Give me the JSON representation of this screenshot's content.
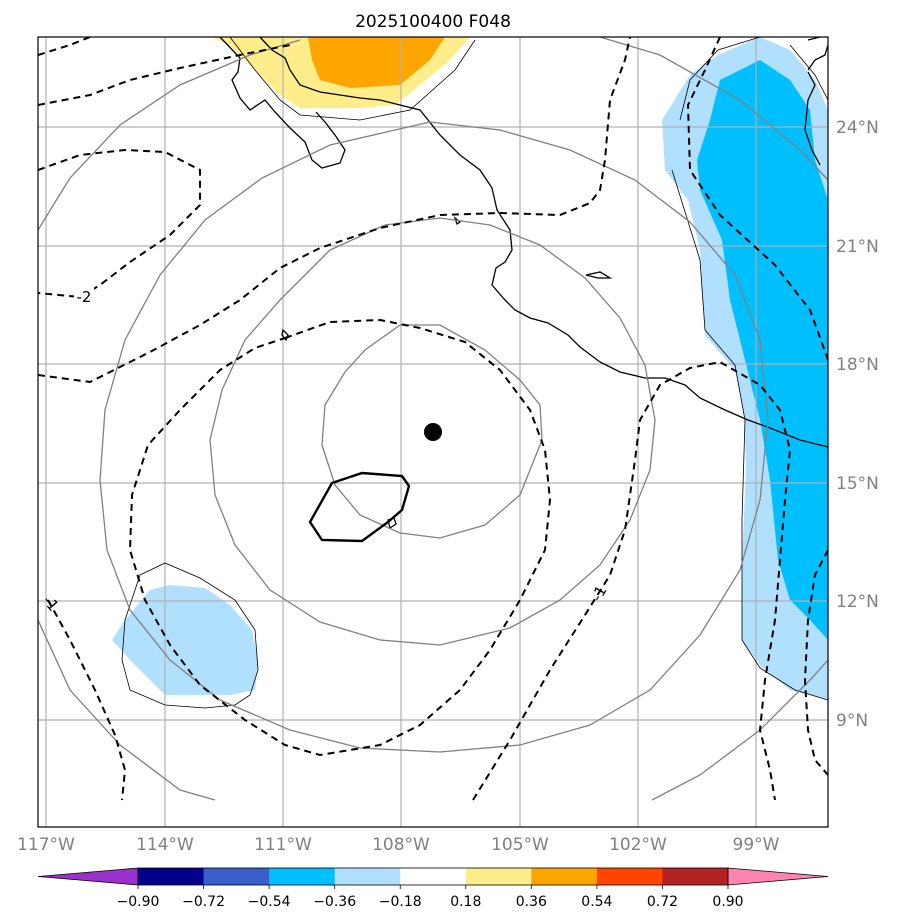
{
  "title": "2025100400 F048",
  "lon_ticks": [
    "117°W",
    "114°W",
    "111°W",
    "108°W",
    "105°W",
    "102°W",
    "99°W"
  ],
  "lat_ticks": [
    "24°N",
    "21°N",
    "18°N",
    "15°N",
    "12°N",
    "9°N"
  ],
  "colorbar": {
    "ticks": [
      "−0.90",
      "−0.72",
      "−0.54",
      "−0.36",
      "−0.18",
      "0.18",
      "0.36",
      "0.54",
      "0.72",
      "0.90"
    ],
    "colors": [
      "#9932cc",
      "#00008b",
      "#3a5fcd",
      "#00bfff",
      "#b0e0fe",
      "#ffffff",
      "#ffec8b",
      "#ffa500",
      "#ff4500",
      "#b22222",
      "#ff83b0"
    ]
  },
  "contour_labels": {
    "neg2": "-2",
    "neg1_left": "-1",
    "neg1_right": "-1"
  },
  "colors": {
    "grid": "#b0b0b0",
    "coast": "#000000",
    "range_rings": "#808080",
    "light_blue": "#b0e0fe",
    "deep_blue": "#00bfff",
    "yellow": "#ffec8b",
    "orange": "#ffa500"
  }
}
